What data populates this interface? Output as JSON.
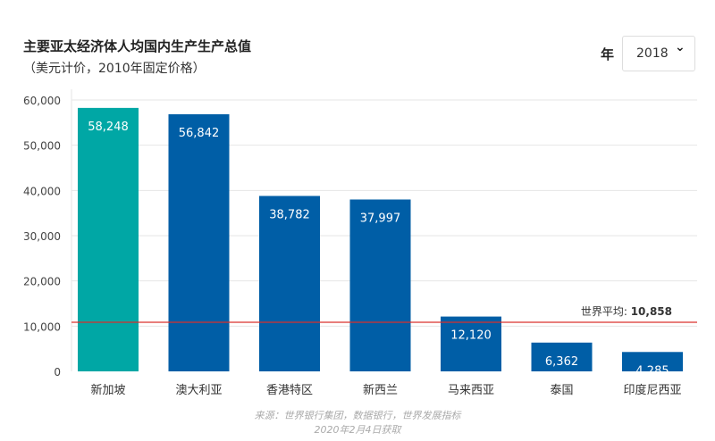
{
  "chart_data": {
    "type": "bar",
    "title": "主要亚太经济体人均国内生产生产总值",
    "subtitle": "（美元计价，2010年固定价格）",
    "categories": [
      "新加坡",
      "澳大利亚",
      "香港特区",
      "新西兰",
      "马来西亚",
      "泰国",
      "印度尼西亚"
    ],
    "values": [
      58248,
      56842,
      38782,
      37997,
      12120,
      6362,
      4285
    ],
    "value_labels": [
      "58,248",
      "56,842",
      "38,782",
      "37,997",
      "12,120",
      "6,362",
      "4,285"
    ],
    "bar_colors": [
      "#00a7a5",
      "#005ea6",
      "#005ea6",
      "#005ea6",
      "#005ea6",
      "#005ea6",
      "#005ea6"
    ],
    "ylim": [
      0,
      60000
    ],
    "yticks": [
      0,
      10000,
      20000,
      30000,
      40000,
      50000,
      60000
    ],
    "ytick_labels": [
      "0",
      "10,000",
      "20,000",
      "30,000",
      "40,000",
      "50,000",
      "60,000"
    ],
    "grid": true,
    "reference_line": {
      "label": "世界平均:",
      "value": 10858,
      "value_label": "10,858",
      "color": "#d9302c"
    }
  },
  "filter": {
    "label": "年",
    "selected": "2018",
    "icon": "chevron-down-icon"
  },
  "source": {
    "line1": "来源：世界银行集团，数据银行，世界发展指标",
    "line2": "2020年2月4日获取"
  }
}
